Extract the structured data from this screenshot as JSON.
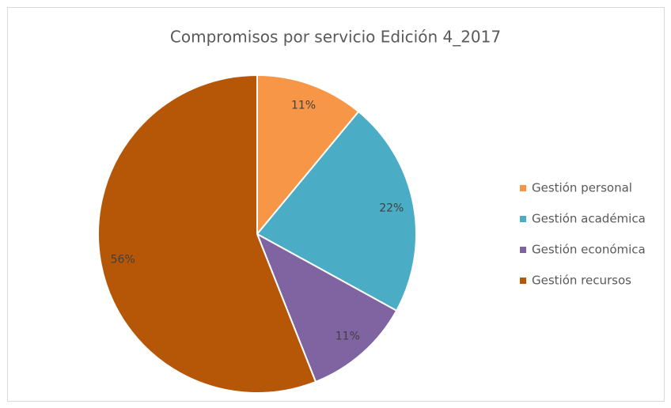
{
  "chart_data": {
    "type": "pie",
    "title": "Compromisos por servicio Edición 4_2017",
    "categories": [
      "Gestión personal",
      "Gestión académica",
      "Gestión económica",
      "Gestión recursos"
    ],
    "values": [
      11,
      22,
      11,
      56
    ],
    "value_labels": [
      "11%",
      "22%",
      "11%",
      "56%"
    ],
    "colors": [
      "#f79646",
      "#4bacc6",
      "#8064a2",
      "#b65708"
    ],
    "legend": "right"
  }
}
